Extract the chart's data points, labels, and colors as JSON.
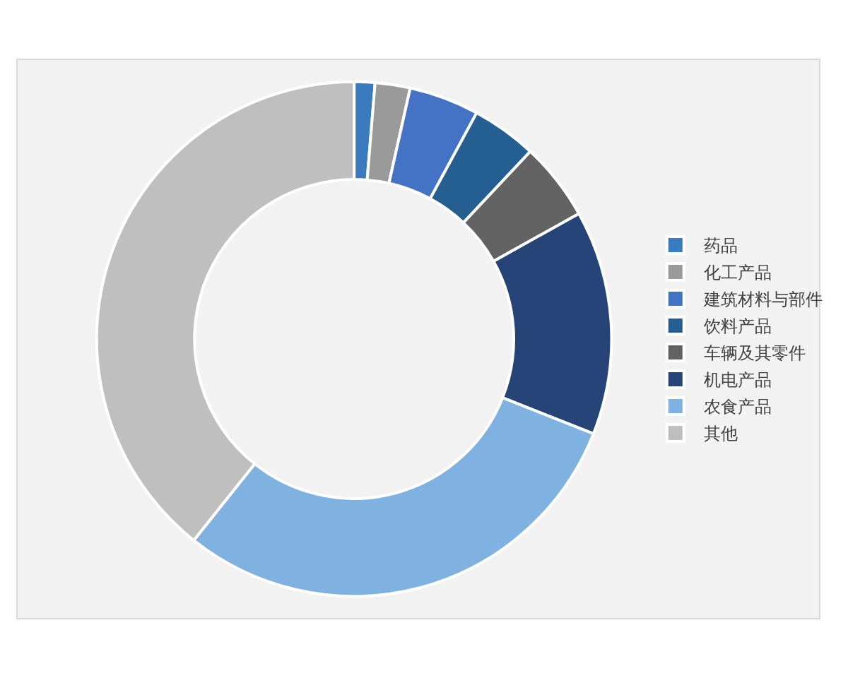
{
  "chart_data": {
    "type": "donut",
    "categories": [
      "药品",
      "化工产品",
      "建筑材料与部件",
      "饮料产品",
      "车辆及其零件",
      "机电产品",
      "农食产品",
      "其他"
    ],
    "values": [
      1.3,
      2.2,
      4.4,
      4.1,
      4.9,
      14.1,
      29.7,
      39.3
    ],
    "colors": [
      "#3a7bbf",
      "#9a9a9a",
      "#4472c4",
      "#255e91",
      "#636363",
      "#264478",
      "#7fb2e0",
      "#bfbfbf"
    ],
    "legend": "right"
  }
}
